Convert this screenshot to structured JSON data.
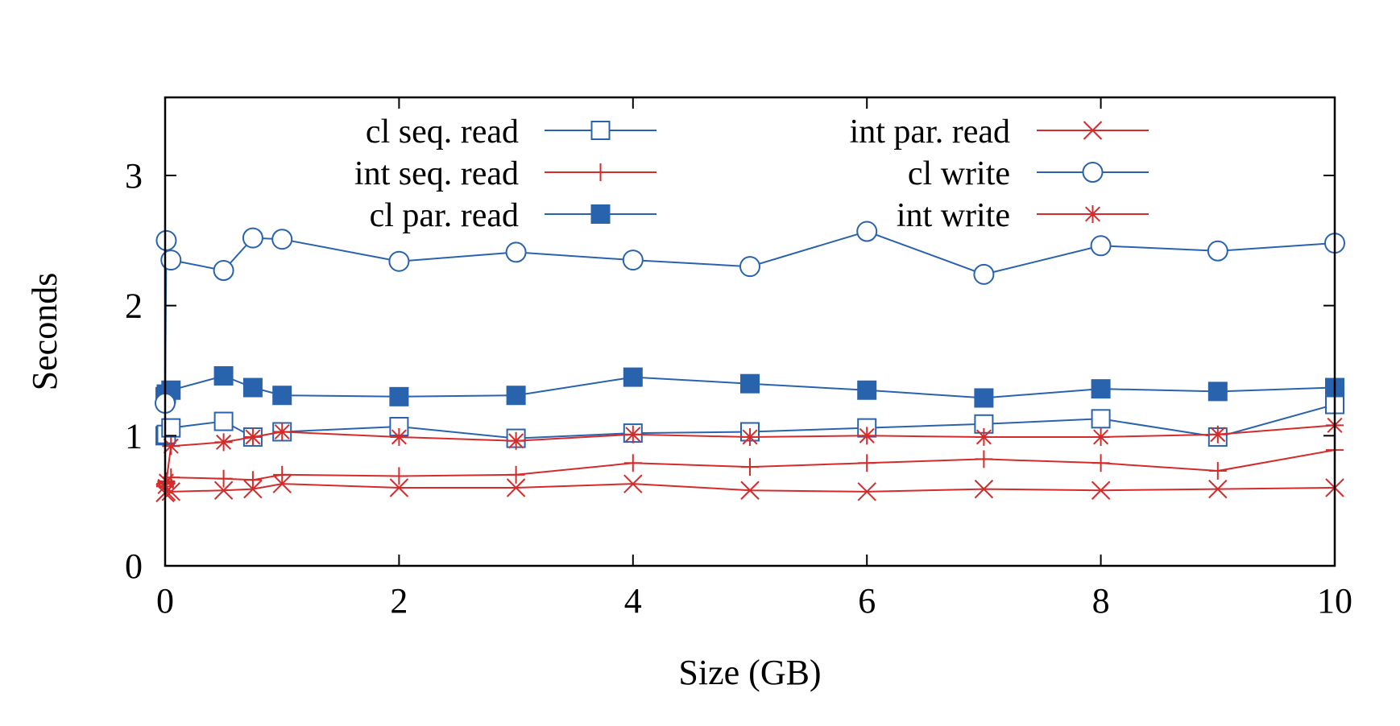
{
  "chart_data": {
    "type": "line",
    "xlabel": "Size (GB)",
    "ylabel": "Seconds",
    "xlim": [
      0,
      10
    ],
    "ylim": [
      0,
      3.6
    ],
    "xticks": [
      0,
      2,
      4,
      6,
      8,
      10
    ],
    "yticks": [
      0,
      1,
      2,
      3
    ],
    "grid": false,
    "legend_placement": "top, two columns",
    "series": [
      {
        "name": "cl seq. read",
        "color": "#2a63ad",
        "marker": "open-square",
        "x": [
          0,
          0.01,
          0.05,
          0.5,
          0.75,
          1,
          2,
          3,
          4,
          5,
          6,
          7,
          8,
          9,
          10
        ],
        "y": [
          1.0,
          1.01,
          1.06,
          1.11,
          0.99,
          1.03,
          1.07,
          0.98,
          1.02,
          1.03,
          1.06,
          1.09,
          1.13,
          0.99,
          1.24
        ]
      },
      {
        "name": "int seq. read",
        "color": "#d52b2b",
        "marker": "plus",
        "x": [
          0,
          0.01,
          0.05,
          0.5,
          0.75,
          1,
          2,
          3,
          4,
          5,
          6,
          7,
          8,
          9,
          10
        ],
        "y": [
          0.63,
          0.64,
          0.68,
          0.67,
          0.66,
          0.7,
          0.69,
          0.7,
          0.79,
          0.76,
          0.79,
          0.82,
          0.79,
          0.73,
          0.89
        ]
      },
      {
        "name": "cl par. read",
        "color": "#2a63ad",
        "marker": "filled-square",
        "x": [
          0,
          0.01,
          0.05,
          0.5,
          0.75,
          1,
          2,
          3,
          4,
          5,
          6,
          7,
          8,
          9,
          10
        ],
        "y": [
          1.3,
          1.32,
          1.35,
          1.46,
          1.37,
          1.31,
          1.3,
          1.31,
          1.45,
          1.4,
          1.35,
          1.29,
          1.36,
          1.34,
          1.37
        ]
      },
      {
        "name": "int par. read",
        "color": "#d52b2b",
        "marker": "x",
        "x": [
          0,
          0.01,
          0.05,
          0.5,
          0.75,
          1,
          2,
          3,
          4,
          5,
          6,
          7,
          8,
          9,
          10
        ],
        "y": [
          0.56,
          0.57,
          0.57,
          0.58,
          0.59,
          0.63,
          0.6,
          0.6,
          0.63,
          0.58,
          0.57,
          0.59,
          0.58,
          0.59,
          0.6
        ]
      },
      {
        "name": "cl write",
        "color": "#2a63ad",
        "marker": "open-circle",
        "x": [
          0,
          0.01,
          0.05,
          0.5,
          0.75,
          1,
          2,
          3,
          4,
          5,
          6,
          7,
          8,
          9,
          10
        ],
        "y": [
          1.25,
          2.5,
          2.35,
          2.27,
          2.52,
          2.51,
          2.34,
          2.41,
          2.35,
          2.3,
          2.57,
          2.24,
          2.46,
          2.42,
          2.48
        ]
      },
      {
        "name": "int write",
        "color": "#d52b2b",
        "marker": "asterisk",
        "x": [
          0,
          0.01,
          0.05,
          0.5,
          0.75,
          1,
          2,
          3,
          4,
          5,
          6,
          7,
          8,
          9,
          10
        ],
        "y": [
          0.61,
          0.65,
          0.92,
          0.95,
          0.99,
          1.03,
          0.99,
          0.96,
          1.01,
          0.99,
          1.0,
          0.99,
          0.99,
          1.01,
          1.08
        ]
      }
    ]
  }
}
